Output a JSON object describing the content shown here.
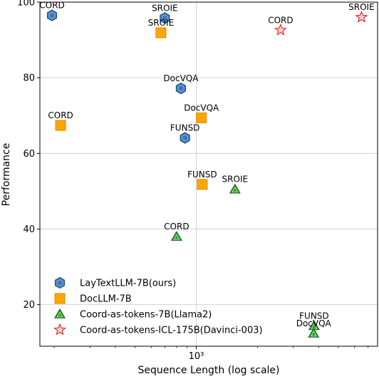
{
  "chart_data": {
    "type": "scatter",
    "title": "",
    "xlabel": "Sequence Length (log scale)",
    "ylabel": "Performance",
    "x_scale": "log",
    "xlim": [
      170,
      7800
    ],
    "ylim": [
      9,
      100
    ],
    "x_ticks": [
      {
        "value": 1000,
        "label": "10³"
      }
    ],
    "y_ticks": [
      20,
      40,
      60,
      80,
      100
    ],
    "grid": true,
    "legend_position": "lower-left",
    "series": [
      {
        "name": "LayTextLLM-7B(ours)",
        "marker": "hexagon",
        "color": "#3a78b4",
        "edge_color": "#1f4e80",
        "points": [
          {
            "x": 195,
            "y": 96.5,
            "label": "CORD"
          },
          {
            "x": 700,
            "y": 95.8,
            "label": "SROIE"
          },
          {
            "x": 840,
            "y": 77.2,
            "label": "DocVQA"
          },
          {
            "x": 880,
            "y": 64.1,
            "label": "FUNSD"
          }
        ]
      },
      {
        "name": "DocLLM-7B",
        "marker": "square",
        "color": "#ffa500",
        "edge_color": "#d98c00",
        "points": [
          {
            "x": 670,
            "y": 91.9,
            "label": "SROIE"
          },
          {
            "x": 215,
            "y": 67.4,
            "label": "CORD"
          },
          {
            "x": 1060,
            "y": 69.4,
            "label": "DocVQA"
          },
          {
            "x": 1070,
            "y": 51.8,
            "label": "FUNSD"
          }
        ]
      },
      {
        "name": "Coord-as-tokens-7B(Llama2)",
        "marker": "triangle",
        "color": "#2ca02c",
        "edge_color": "#106010",
        "points": [
          {
            "x": 1550,
            "y": 50.5,
            "label": "SROIE"
          },
          {
            "x": 800,
            "y": 38.0,
            "label": "CORD"
          },
          {
            "x": 3800,
            "y": 14.4,
            "label": "FUNSD"
          },
          {
            "x": 3780,
            "y": 12.4,
            "label": "DocVQA"
          }
        ]
      },
      {
        "name": "Coord-as-tokens-ICL-175B(Davinci-003)",
        "marker": "star",
        "color": "#ffd0d0",
        "edge_color": "#e02020",
        "points": [
          {
            "x": 2600,
            "y": 92.6,
            "label": "CORD"
          },
          {
            "x": 6500,
            "y": 96.0,
            "label": "SROIE"
          }
        ]
      }
    ]
  }
}
